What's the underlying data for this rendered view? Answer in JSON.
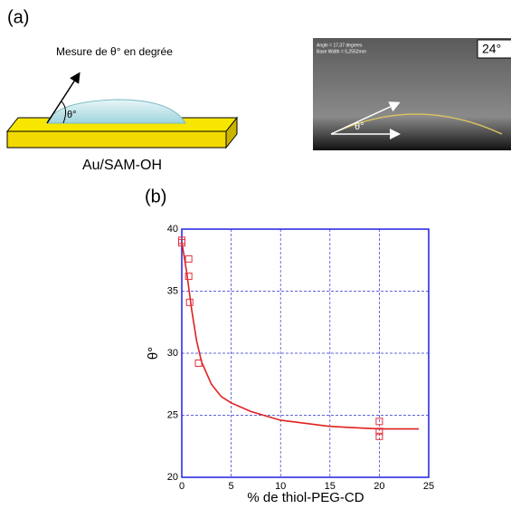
{
  "panel_a": {
    "label": "(a)",
    "title": "Mesure de θ° en degrée",
    "angle": "θ°",
    "substrate": "Au/SAM-OH",
    "photo": {
      "line1": "Angle = 17,37 degrees",
      "line2": "Base Width = 5,2552mm",
      "angle": "θ°",
      "badge": "24°"
    }
  },
  "chart_data": {
    "type": "scatter",
    "panel_label": "(b)",
    "xlabel": "% de thiol-PEG-CD",
    "ylabel": "θ°",
    "x": [
      0,
      0,
      0.7,
      0.7,
      0.8,
      1.7,
      20,
      20,
      20
    ],
    "y": [
      39.1,
      38.9,
      37.6,
      36.2,
      34.1,
      29.2,
      24.5,
      23.7,
      23.3
    ],
    "color": "#e0303a",
    "fit": {
      "x": [
        0,
        0.5,
        1,
        1.5,
        2,
        3,
        4,
        5,
        7,
        10,
        15,
        20,
        24
      ],
      "y": [
        39,
        36.5,
        33.5,
        31,
        29.3,
        27.5,
        26.5,
        26,
        25.3,
        24.6,
        24.1,
        23.9,
        23.9
      ],
      "color": "#e02020"
    },
    "xlim": [
      0,
      25
    ],
    "xticks": [
      0,
      5,
      10,
      15,
      20,
      25
    ],
    "ylim": [
      20,
      40
    ],
    "yticks": [
      20,
      25,
      30,
      35,
      40
    ],
    "grid": true
  }
}
